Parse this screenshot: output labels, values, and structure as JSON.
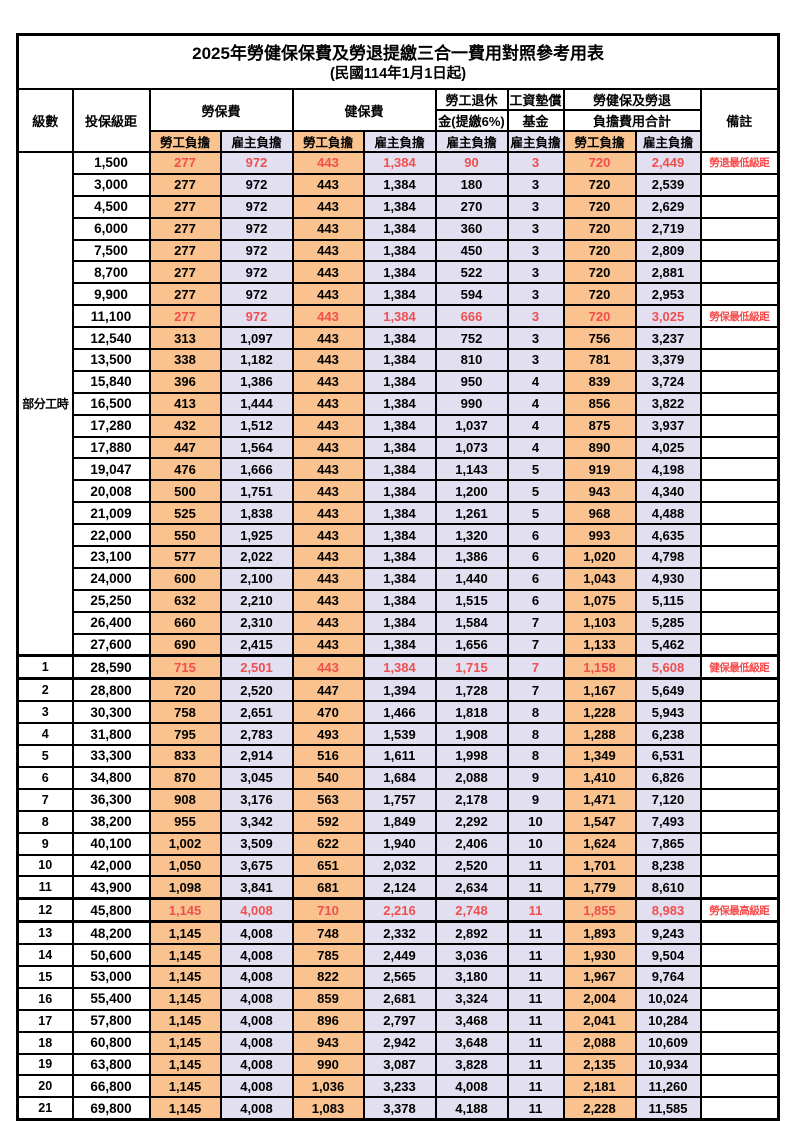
{
  "title": "2025年勞健保保費及勞退提繳三合一費用對照參考用表",
  "subtitle": "(民國114年1月1日起)",
  "header": {
    "level": "級數",
    "bracket": "投保級距",
    "labor_ins": "勞保費",
    "health_ins": "健保費",
    "pension_line1": "勞工退休",
    "pension_line2": "金(提繳6%)",
    "wage_fund_line1": "工資墊償",
    "wage_fund_line2": "基金",
    "total_line1": "勞健保及勞退",
    "total_line2": "負擔費用合計",
    "remark": "備註",
    "employee_share": "勞工負擔",
    "employer_share": "雇主負擔"
  },
  "group_label": "部分工時",
  "part_time_rowspan": 23,
  "colors": {
    "employee_col_bg": "#F9C28E",
    "employer_col_bg": "#E1DFF0",
    "highlight_text": "#F04F4F",
    "remark_text": "#F94B4B",
    "border": "#000000"
  },
  "rows": [
    {
      "lv": "",
      "amt": "1,500",
      "v": [
        "277",
        "972",
        "443",
        "1,384",
        "90",
        "3",
        "720",
        "2,449"
      ],
      "note": "勞退最低級距",
      "red": true,
      "thick": false
    },
    {
      "lv": "",
      "amt": "3,000",
      "v": [
        "277",
        "972",
        "443",
        "1,384",
        "180",
        "3",
        "720",
        "2,539"
      ],
      "note": "",
      "red": false,
      "thick": false
    },
    {
      "lv": "",
      "amt": "4,500",
      "v": [
        "277",
        "972",
        "443",
        "1,384",
        "270",
        "3",
        "720",
        "2,629"
      ],
      "note": "",
      "red": false,
      "thick": false
    },
    {
      "lv": "",
      "amt": "6,000",
      "v": [
        "277",
        "972",
        "443",
        "1,384",
        "360",
        "3",
        "720",
        "2,719"
      ],
      "note": "",
      "red": false,
      "thick": false
    },
    {
      "lv": "",
      "amt": "7,500",
      "v": [
        "277",
        "972",
        "443",
        "1,384",
        "450",
        "3",
        "720",
        "2,809"
      ],
      "note": "",
      "red": false,
      "thick": false
    },
    {
      "lv": "",
      "amt": "8,700",
      "v": [
        "277",
        "972",
        "443",
        "1,384",
        "522",
        "3",
        "720",
        "2,881"
      ],
      "note": "",
      "red": false,
      "thick": false
    },
    {
      "lv": "",
      "amt": "9,900",
      "v": [
        "277",
        "972",
        "443",
        "1,384",
        "594",
        "3",
        "720",
        "2,953"
      ],
      "note": "",
      "red": false,
      "thick": false
    },
    {
      "lv": "",
      "amt": "11,100",
      "v": [
        "277",
        "972",
        "443",
        "1,384",
        "666",
        "3",
        "720",
        "3,025"
      ],
      "note": "勞保最低級距",
      "red": true,
      "thick": false
    },
    {
      "lv": "",
      "amt": "12,540",
      "v": [
        "313",
        "1,097",
        "443",
        "1,384",
        "752",
        "3",
        "756",
        "3,237"
      ],
      "note": "",
      "red": false,
      "thick": false
    },
    {
      "lv": "",
      "amt": "13,500",
      "v": [
        "338",
        "1,182",
        "443",
        "1,384",
        "810",
        "3",
        "781",
        "3,379"
      ],
      "note": "",
      "red": false,
      "thick": false
    },
    {
      "lv": "",
      "amt": "15,840",
      "v": [
        "396",
        "1,386",
        "443",
        "1,384",
        "950",
        "4",
        "839",
        "3,724"
      ],
      "note": "",
      "red": false,
      "thick": false
    },
    {
      "lv": "",
      "amt": "16,500",
      "v": [
        "413",
        "1,444",
        "443",
        "1,384",
        "990",
        "4",
        "856",
        "3,822"
      ],
      "note": "",
      "red": false,
      "thick": false
    },
    {
      "lv": "",
      "amt": "17,280",
      "v": [
        "432",
        "1,512",
        "443",
        "1,384",
        "1,037",
        "4",
        "875",
        "3,937"
      ],
      "note": "",
      "red": false,
      "thick": false
    },
    {
      "lv": "",
      "amt": "17,880",
      "v": [
        "447",
        "1,564",
        "443",
        "1,384",
        "1,073",
        "4",
        "890",
        "4,025"
      ],
      "note": "",
      "red": false,
      "thick": false
    },
    {
      "lv": "",
      "amt": "19,047",
      "v": [
        "476",
        "1,666",
        "443",
        "1,384",
        "1,143",
        "5",
        "919",
        "4,198"
      ],
      "note": "",
      "red": false,
      "thick": false
    },
    {
      "lv": "",
      "amt": "20,008",
      "v": [
        "500",
        "1,751",
        "443",
        "1,384",
        "1,200",
        "5",
        "943",
        "4,340"
      ],
      "note": "",
      "red": false,
      "thick": false
    },
    {
      "lv": "",
      "amt": "21,009",
      "v": [
        "525",
        "1,838",
        "443",
        "1,384",
        "1,261",
        "5",
        "968",
        "4,488"
      ],
      "note": "",
      "red": false,
      "thick": false
    },
    {
      "lv": "",
      "amt": "22,000",
      "v": [
        "550",
        "1,925",
        "443",
        "1,384",
        "1,320",
        "6",
        "993",
        "4,635"
      ],
      "note": "",
      "red": false,
      "thick": false
    },
    {
      "lv": "",
      "amt": "23,100",
      "v": [
        "577",
        "2,022",
        "443",
        "1,384",
        "1,386",
        "6",
        "1,020",
        "4,798"
      ],
      "note": "",
      "red": false,
      "thick": false
    },
    {
      "lv": "",
      "amt": "24,000",
      "v": [
        "600",
        "2,100",
        "443",
        "1,384",
        "1,440",
        "6",
        "1,043",
        "4,930"
      ],
      "note": "",
      "red": false,
      "thick": false
    },
    {
      "lv": "",
      "amt": "25,250",
      "v": [
        "632",
        "2,210",
        "443",
        "1,384",
        "1,515",
        "6",
        "1,075",
        "5,115"
      ],
      "note": "",
      "red": false,
      "thick": false
    },
    {
      "lv": "",
      "amt": "26,400",
      "v": [
        "660",
        "2,310",
        "443",
        "1,384",
        "1,584",
        "7",
        "1,103",
        "5,285"
      ],
      "note": "",
      "red": false,
      "thick": false
    },
    {
      "lv": "",
      "amt": "27,600",
      "v": [
        "690",
        "2,415",
        "443",
        "1,384",
        "1,656",
        "7",
        "1,133",
        "5,462"
      ],
      "note": "",
      "red": false,
      "thick": false
    },
    {
      "lv": "1",
      "amt": "28,590",
      "v": [
        "715",
        "2,501",
        "443",
        "1,384",
        "1,715",
        "7",
        "1,158",
        "5,608"
      ],
      "note": "健保最低級距",
      "red": true,
      "thick": true
    },
    {
      "lv": "2",
      "amt": "28,800",
      "v": [
        "720",
        "2,520",
        "447",
        "1,394",
        "1,728",
        "7",
        "1,167",
        "5,649"
      ],
      "note": "",
      "red": false,
      "thick": false
    },
    {
      "lv": "3",
      "amt": "30,300",
      "v": [
        "758",
        "2,651",
        "470",
        "1,466",
        "1,818",
        "8",
        "1,228",
        "5,943"
      ],
      "note": "",
      "red": false,
      "thick": false
    },
    {
      "lv": "4",
      "amt": "31,800",
      "v": [
        "795",
        "2,783",
        "493",
        "1,539",
        "1,908",
        "8",
        "1,288",
        "6,238"
      ],
      "note": "",
      "red": false,
      "thick": false
    },
    {
      "lv": "5",
      "amt": "33,300",
      "v": [
        "833",
        "2,914",
        "516",
        "1,611",
        "1,998",
        "8",
        "1,349",
        "6,531"
      ],
      "note": "",
      "red": false,
      "thick": false
    },
    {
      "lv": "6",
      "amt": "34,800",
      "v": [
        "870",
        "3,045",
        "540",
        "1,684",
        "2,088",
        "9",
        "1,410",
        "6,826"
      ],
      "note": "",
      "red": false,
      "thick": false
    },
    {
      "lv": "7",
      "amt": "36,300",
      "v": [
        "908",
        "3,176",
        "563",
        "1,757",
        "2,178",
        "9",
        "1,471",
        "7,120"
      ],
      "note": "",
      "red": false,
      "thick": false
    },
    {
      "lv": "8",
      "amt": "38,200",
      "v": [
        "955",
        "3,342",
        "592",
        "1,849",
        "2,292",
        "10",
        "1,547",
        "7,493"
      ],
      "note": "",
      "red": false,
      "thick": false
    },
    {
      "lv": "9",
      "amt": "40,100",
      "v": [
        "1,002",
        "3,509",
        "622",
        "1,940",
        "2,406",
        "10",
        "1,624",
        "7,865"
      ],
      "note": "",
      "red": false,
      "thick": false
    },
    {
      "lv": "10",
      "amt": "42,000",
      "v": [
        "1,050",
        "3,675",
        "651",
        "2,032",
        "2,520",
        "11",
        "1,701",
        "8,238"
      ],
      "note": "",
      "red": false,
      "thick": false
    },
    {
      "lv": "11",
      "amt": "43,900",
      "v": [
        "1,098",
        "3,841",
        "681",
        "2,124",
        "2,634",
        "11",
        "1,779",
        "8,610"
      ],
      "note": "",
      "red": false,
      "thick": false
    },
    {
      "lv": "12",
      "amt": "45,800",
      "v": [
        "1,145",
        "4,008",
        "710",
        "2,216",
        "2,748",
        "11",
        "1,855",
        "8,983"
      ],
      "note": "勞保最高級距",
      "red": true,
      "thick": true
    },
    {
      "lv": "13",
      "amt": "48,200",
      "v": [
        "1,145",
        "4,008",
        "748",
        "2,332",
        "2,892",
        "11",
        "1,893",
        "9,243"
      ],
      "note": "",
      "red": false,
      "thick": false
    },
    {
      "lv": "14",
      "amt": "50,600",
      "v": [
        "1,145",
        "4,008",
        "785",
        "2,449",
        "3,036",
        "11",
        "1,930",
        "9,504"
      ],
      "note": "",
      "red": false,
      "thick": false
    },
    {
      "lv": "15",
      "amt": "53,000",
      "v": [
        "1,145",
        "4,008",
        "822",
        "2,565",
        "3,180",
        "11",
        "1,967",
        "9,764"
      ],
      "note": "",
      "red": false,
      "thick": false
    },
    {
      "lv": "16",
      "amt": "55,400",
      "v": [
        "1,145",
        "4,008",
        "859",
        "2,681",
        "3,324",
        "11",
        "2,004",
        "10,024"
      ],
      "note": "",
      "red": false,
      "thick": false
    },
    {
      "lv": "17",
      "amt": "57,800",
      "v": [
        "1,145",
        "4,008",
        "896",
        "2,797",
        "3,468",
        "11",
        "2,041",
        "10,284"
      ],
      "note": "",
      "red": false,
      "thick": false
    },
    {
      "lv": "18",
      "amt": "60,800",
      "v": [
        "1,145",
        "4,008",
        "943",
        "2,942",
        "3,648",
        "11",
        "2,088",
        "10,609"
      ],
      "note": "",
      "red": false,
      "thick": false
    },
    {
      "lv": "19",
      "amt": "63,800",
      "v": [
        "1,145",
        "4,008",
        "990",
        "3,087",
        "3,828",
        "11",
        "2,135",
        "10,934"
      ],
      "note": "",
      "red": false,
      "thick": false
    },
    {
      "lv": "20",
      "amt": "66,800",
      "v": [
        "1,145",
        "4,008",
        "1,036",
        "3,233",
        "4,008",
        "11",
        "2,181",
        "11,260"
      ],
      "note": "",
      "red": false,
      "thick": false
    },
    {
      "lv": "21",
      "amt": "69,800",
      "v": [
        "1,145",
        "4,008",
        "1,083",
        "3,378",
        "4,188",
        "11",
        "2,228",
        "11,585"
      ],
      "note": "",
      "red": false,
      "thick": false
    }
  ]
}
